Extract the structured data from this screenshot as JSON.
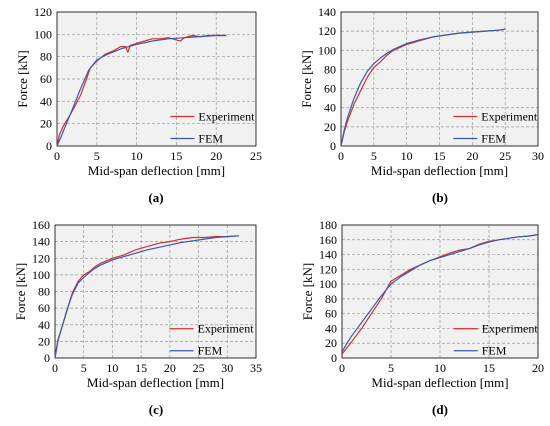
{
  "chart_data": [
    {
      "panel": "(a)",
      "type": "line",
      "xlabel": "Mid-span deflection [mm]",
      "ylabel": "Force [kN]",
      "xlim": [
        0,
        25
      ],
      "ylim": [
        0,
        120
      ],
      "xticks": [
        0,
        5,
        10,
        15,
        20,
        25
      ],
      "yticks": [
        0,
        20,
        40,
        60,
        80,
        100,
        120
      ],
      "grid": true,
      "legend": "lower-right",
      "series": [
        {
          "name": "Experiment",
          "color": "#d0312d",
          "x": [
            0,
            0.3,
            0.8,
            1.5,
            2.2,
            3.0,
            3.6,
            4.2,
            5.0,
            6.0,
            7.0,
            8.0,
            8.6,
            8.9,
            9.2,
            10,
            11,
            12,
            13,
            14,
            15,
            15.5,
            16,
            17,
            18,
            19,
            20,
            21.3
          ],
          "y": [
            0,
            10,
            18,
            26,
            35,
            46,
            58,
            70,
            76,
            82,
            85,
            89,
            89,
            84,
            90,
            92,
            94,
            96,
            96,
            97,
            95,
            94,
            97,
            99,
            98,
            99,
            99,
            99
          ]
        },
        {
          "name": "FEM",
          "color": "#3b5ba9",
          "x": [
            0,
            0.5,
            1.0,
            2.0,
            3.0,
            4.0,
            5.0,
            6.0,
            7.0,
            8.0,
            9.0,
            10,
            12,
            14,
            16,
            18,
            20,
            21.3
          ],
          "y": [
            0,
            8,
            17,
            34,
            52,
            68,
            77,
            81,
            84,
            87,
            89,
            91,
            94,
            96,
            97,
            98,
            99,
            99
          ]
        }
      ]
    },
    {
      "panel": "(b)",
      "type": "line",
      "xlabel": "Mid-span deflection [mm]",
      "ylabel": "Force [kN]",
      "xlim": [
        0,
        30
      ],
      "ylim": [
        0,
        140
      ],
      "xticks": [
        0,
        5,
        10,
        15,
        20,
        25,
        30
      ],
      "yticks": [
        0,
        20,
        40,
        60,
        80,
        100,
        120,
        140
      ],
      "grid": true,
      "legend": "lower-right",
      "series": [
        {
          "name": "Experiment",
          "color": "#d0312d",
          "x": [
            0,
            0.5,
            1.0,
            2.0,
            3.0,
            4.0,
            5.0,
            6.0,
            7.0,
            8.0,
            10,
            12,
            14,
            16,
            18,
            20,
            22,
            24,
            25
          ],
          "y": [
            0,
            15,
            26,
            44,
            58,
            72,
            82,
            88,
            95,
            100,
            106,
            110,
            114,
            116,
            118,
            119,
            120,
            121,
            122
          ]
        },
        {
          "name": "FEM",
          "color": "#3b5ba9",
          "x": [
            0,
            0.5,
            1.0,
            2.0,
            3.0,
            4.0,
            5.0,
            6.0,
            7.0,
            8.0,
            10,
            12,
            14,
            16,
            18,
            20,
            22,
            24,
            25
          ],
          "y": [
            0,
            17,
            30,
            50,
            66,
            78,
            86,
            92,
            97,
            101,
            107,
            111,
            114,
            116,
            118,
            119,
            120,
            121,
            122
          ]
        }
      ]
    },
    {
      "panel": "(c)",
      "type": "line",
      "xlabel": "Mid-span deflection [mm]",
      "ylabel": "Force [kN]",
      "xlim": [
        0,
        35
      ],
      "ylim": [
        0,
        160
      ],
      "xticks": [
        0,
        5,
        10,
        15,
        20,
        25,
        30,
        35
      ],
      "yticks": [
        0,
        20,
        40,
        60,
        80,
        100,
        120,
        140,
        160
      ],
      "grid": true,
      "legend": "lower-right",
      "series": [
        {
          "name": "Experiment",
          "color": "#d0312d",
          "x": [
            0,
            0.5,
            1.0,
            2.0,
            3.0,
            4.0,
            5.0,
            6.0,
            7.0,
            8.0,
            10,
            12,
            14,
            16,
            18,
            20,
            22,
            24,
            26,
            28,
            30,
            32
          ],
          "y": [
            0,
            22,
            32,
            55,
            78,
            92,
            100,
            104,
            110,
            114,
            120,
            124,
            130,
            134,
            138,
            140,
            143,
            145,
            145,
            146,
            146,
            147
          ]
        },
        {
          "name": "FEM",
          "color": "#3b5ba9",
          "x": [
            0,
            0.5,
            1.0,
            2.0,
            3.0,
            4.0,
            5.0,
            6.0,
            7.0,
            8.0,
            10,
            12,
            14,
            16,
            18,
            20,
            22,
            24,
            26,
            28,
            30,
            32
          ],
          "y": [
            0,
            20,
            32,
            56,
            76,
            90,
            97,
            103,
            108,
            112,
            118,
            122,
            126,
            130,
            133,
            136,
            139,
            141,
            143,
            145,
            146,
            147
          ]
        }
      ]
    },
    {
      "panel": "(d)",
      "type": "line",
      "xlabel": "Mid-span deflection [mm]",
      "ylabel": "Force [kN]",
      "xlim": [
        0,
        20
      ],
      "ylim": [
        0,
        180
      ],
      "xticks": [
        0,
        5,
        10,
        15,
        20
      ],
      "yticks": [
        0,
        20,
        40,
        60,
        80,
        100,
        120,
        140,
        160,
        180
      ],
      "grid": true,
      "legend": "lower-right",
      "series": [
        {
          "name": "Experiment",
          "color": "#d0312d",
          "x": [
            0,
            0.5,
            1.0,
            2.0,
            3.0,
            4.0,
            5.0,
            6.0,
            7.0,
            8.0,
            9.0,
            10,
            11,
            12,
            13,
            14,
            15,
            16,
            17,
            18,
            19,
            20
          ],
          "y": [
            5,
            14,
            22,
            40,
            60,
            80,
            104,
            112,
            120,
            126,
            132,
            137,
            142,
            146,
            148,
            154,
            158,
            160,
            162,
            164,
            165,
            167
          ]
        },
        {
          "name": "FEM",
          "color": "#3b5ba9",
          "x": [
            0,
            0.5,
            1.0,
            2.0,
            3.0,
            4.0,
            5.0,
            6.0,
            7.0,
            8.0,
            9.0,
            10,
            11,
            12,
            13,
            14,
            15,
            16,
            17,
            18,
            19,
            20
          ],
          "y": [
            8,
            20,
            30,
            48,
            66,
            84,
            100,
            110,
            118,
            126,
            132,
            136,
            140,
            144,
            148,
            153,
            157,
            160,
            162,
            164,
            165,
            167
          ]
        }
      ]
    }
  ]
}
